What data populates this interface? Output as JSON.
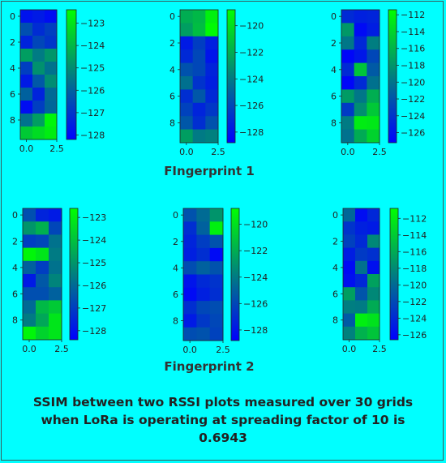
{
  "captions": {
    "fingerprint1": "FIngerprint 1",
    "fingerprint2": "Fingerprint 2",
    "note": "SSIM between two RSSI plots measured over 30 grids when LoRa is operating at spreading factor of 10 is 0.6943"
  },
  "colors": {
    "low": "#0000ff",
    "high": "#00ff00",
    "background": "#00ffff"
  },
  "chart_data": [
    {
      "type": "heatmap",
      "group": "Fingerprint 1",
      "position": "left",
      "x_ticks": [
        "0.0",
        "2.5"
      ],
      "y_ticks": [
        "0",
        "2",
        "4",
        "6",
        "8"
      ],
      "colorbar_ticks": [
        "-123",
        "-124",
        "-125",
        "-126",
        "-127",
        "-128"
      ],
      "vmin": -128.2,
      "vmax": -122.4,
      "values": [
        [
          -127.8,
          -127.6,
          -127.9
        ],
        [
          -126.4,
          -127.2,
          -126.8
        ],
        [
          -127.4,
          -126.6,
          -127.0
        ],
        [
          -124.6,
          -125.4,
          -124.8
        ],
        [
          -126.8,
          -124.9,
          -125.6
        ],
        [
          -127.6,
          -126.2,
          -125.0
        ],
        [
          -126.0,
          -127.4,
          -125.8
        ],
        [
          -127.9,
          -126.8,
          -125.9
        ],
        [
          -125.6,
          -124.6,
          -122.6
        ],
        [
          -123.6,
          -123.2,
          -122.8
        ]
      ]
    },
    {
      "type": "heatmap",
      "group": "Fingerprint 1",
      "position": "center",
      "x_ticks": [
        "0.0",
        "2.5"
      ],
      "y_ticks": [
        "0",
        "2",
        "4",
        "6",
        "8"
      ],
      "colorbar_ticks": [
        "-120",
        "-122",
        "-124",
        "-126",
        "-128"
      ],
      "vmin": -128.8,
      "vmax": -118.8,
      "values": [
        [
          -122.0,
          -121.6,
          -119.4
        ],
        [
          -122.6,
          -121.4,
          -119.0
        ],
        [
          -127.8,
          -126.4,
          -127.6
        ],
        [
          -127.2,
          -126.0,
          -128.0
        ],
        [
          -125.6,
          -126.0,
          -127.4
        ],
        [
          -124.4,
          -126.8,
          -127.6
        ],
        [
          -127.0,
          -125.4,
          -127.2
        ],
        [
          -126.2,
          -127.4,
          -126.6
        ],
        [
          -125.4,
          -127.0,
          -125.6
        ],
        [
          -122.6,
          -124.0,
          -123.8
        ]
      ]
    },
    {
      "type": "heatmap",
      "group": "Fingerprint 1",
      "position": "right",
      "x_ticks": [
        "0.0",
        "2.5"
      ],
      "y_ticks": [
        "0",
        "2",
        "4",
        "6",
        "8"
      ],
      "colorbar_ticks": [
        "-112",
        "-114",
        "-116",
        "-118",
        "-120",
        "-122",
        "-124",
        "-126"
      ],
      "vmin": -127.2,
      "vmax": -111.4,
      "values": [
        [
          -124.6,
          -125.2,
          -125.0
        ],
        [
          -117.8,
          -126.6,
          -125.4
        ],
        [
          -119.8,
          -124.8,
          -119.4
        ],
        [
          -126.8,
          -125.8,
          -122.8
        ],
        [
          -124.6,
          -115.0,
          -121.6
        ],
        [
          -126.8,
          -124.6,
          -120.2
        ],
        [
          -117.6,
          -119.8,
          -116.4
        ],
        [
          -123.6,
          -118.4,
          -114.8
        ],
        [
          -119.6,
          -112.6,
          -112.8
        ],
        [
          -120.2,
          -116.6,
          -114.2
        ]
      ]
    },
    {
      "type": "heatmap",
      "group": "Fingerprint 2",
      "position": "left",
      "x_ticks": [
        "0.0",
        "2.5"
      ],
      "y_ticks": [
        "0",
        "2",
        "4",
        "6",
        "8"
      ],
      "colorbar_ticks": [
        "-123",
        "-124",
        "-125",
        "-126",
        "-127",
        "-128"
      ],
      "vmin": -128.4,
      "vmax": -122.6,
      "values": [
        [
          -126.6,
          -127.6,
          -127.8
        ],
        [
          -125.0,
          -124.4,
          -126.8
        ],
        [
          -127.0,
          -126.8,
          -125.8
        ],
        [
          -122.8,
          -123.2,
          -125.6
        ],
        [
          -126.2,
          -127.0,
          -125.8
        ],
        [
          -127.8,
          -126.4,
          -125.4
        ],
        [
          -126.6,
          -126.6,
          -126.2
        ],
        [
          -126.0,
          -124.2,
          -123.8
        ],
        [
          -125.6,
          -124.6,
          -123.2
        ],
        [
          -122.8,
          -123.6,
          -123.2
        ]
      ]
    },
    {
      "type": "heatmap",
      "group": "Fingerprint 2",
      "position": "center",
      "x_ticks": [
        "0.0",
        "2.5"
      ],
      "y_ticks": [
        "0",
        "2",
        "4",
        "6",
        "8"
      ],
      "colorbar_ticks": [
        "-120",
        "-122",
        "-124",
        "-126",
        "-128"
      ],
      "vmin": -128.8,
      "vmax": -118.8,
      "values": [
        [
          -125.6,
          -124.6,
          -123.0
        ],
        [
          -127.0,
          -125.0,
          -119.4
        ],
        [
          -127.4,
          -126.4,
          -125.6
        ],
        [
          -127.6,
          -127.0,
          -128.4
        ],
        [
          -125.8,
          -125.0,
          -125.6
        ],
        [
          -128.0,
          -127.2,
          -126.8
        ],
        [
          -128.4,
          -127.6,
          -127.0
        ],
        [
          -127.0,
          -126.0,
          -125.8
        ],
        [
          -127.8,
          -126.6,
          -126.0
        ],
        [
          -125.8,
          -125.6,
          -126.2
        ]
      ]
    },
    {
      "type": "heatmap",
      "group": "Fingerprint 2",
      "position": "right",
      "x_ticks": [
        "0.0",
        "2.5"
      ],
      "y_ticks": [
        "0",
        "2",
        "4",
        "6",
        "8"
      ],
      "colorbar_ticks": [
        "-112",
        "-114",
        "-116",
        "-118",
        "-120",
        "-122",
        "-124",
        "-126"
      ],
      "vmin": -126.6,
      "vmax": -110.8,
      "values": [
        [
          -120.2,
          -125.8,
          -124.2
        ],
        [
          -123.4,
          -124.6,
          -125.0
        ],
        [
          -122.6,
          -124.0,
          -118.2
        ],
        [
          -124.8,
          -123.0,
          -123.6
        ],
        [
          -126.0,
          -119.6,
          -125.6
        ],
        [
          -125.6,
          -124.2,
          -116.6
        ],
        [
          -116.8,
          -121.4,
          -118.2
        ],
        [
          -118.8,
          -119.0,
          -116.0
        ],
        [
          -121.0,
          -111.8,
          -112.6
        ],
        [
          -118.6,
          -115.6,
          -114.4
        ]
      ]
    }
  ]
}
